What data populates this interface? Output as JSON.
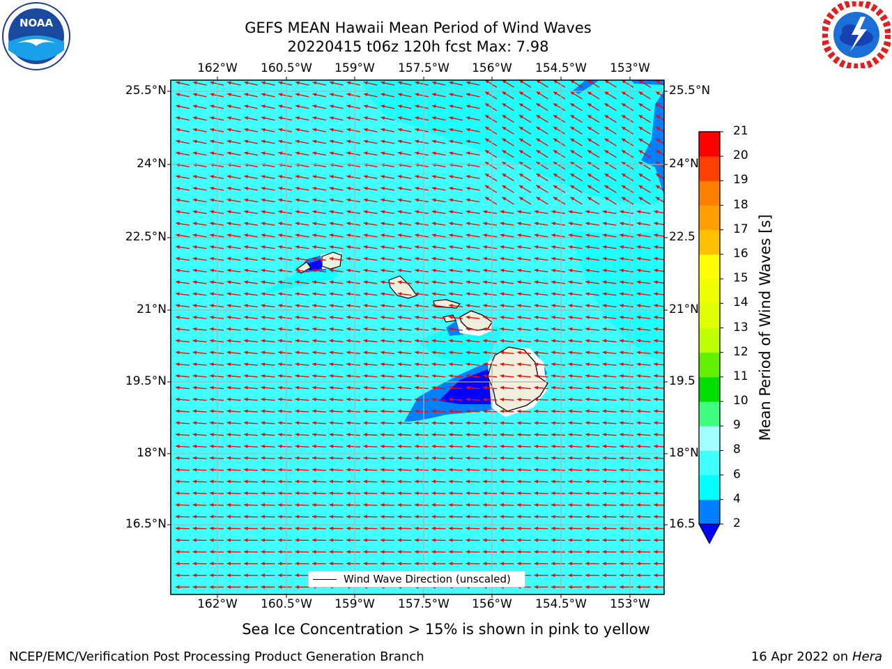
{
  "header": {
    "title_line1": "GEFS MEAN Hawaii Mean Period of Wind Waves",
    "title_line2": "20220415 t06z 120h fcst   Max: 7.98"
  },
  "map": {
    "lon_labels": [
      "162°W",
      "160.5°W",
      "159°W",
      "157.5°W",
      "156°W",
      "154.5°W",
      "153°W"
    ],
    "lat_labels": [
      "25.5°N",
      "24°N",
      "22.5°N",
      "21°N",
      "19.5°N",
      "18°N",
      "16.5°N"
    ],
    "right_lat_labels": [
      "25.5°N",
      "24°N",
      "22.5",
      "21°N",
      "19.5",
      "18°N",
      "16.5"
    ],
    "legend_label": "Wind Wave Direction (unscaled)",
    "ocean_color": "#40ffff",
    "arrow_color": "#ff0000",
    "land_color": "#f0eedc"
  },
  "colorbar": {
    "label": "Mean Period of Wind Waves [s]",
    "ticks": [
      "2",
      "4",
      "6",
      "8",
      "9",
      "10",
      "11",
      "12",
      "13",
      "14",
      "15",
      "16",
      "17",
      "18",
      "19",
      "20",
      "21"
    ],
    "colors": [
      "#0080ff",
      "#00ffff",
      "#40ffff",
      "#a0ffff",
      "#40ff80",
      "#00e000",
      "#60f000",
      "#c0ff00",
      "#e0ff00",
      "#f0ff00",
      "#ffff00",
      "#ffc000",
      "#ffa000",
      "#ff8000",
      "#ff4000",
      "#ff0000"
    ],
    "under_color": "#0000ff"
  },
  "footer": {
    "note": "Sea Ice Concentration > 15% is shown in pink to yellow",
    "left": "NCEP/EMC/Verification Post Processing Product Generation Branch",
    "right_prefix": "16 Apr 2022 on ",
    "right_host": "Hera"
  }
}
